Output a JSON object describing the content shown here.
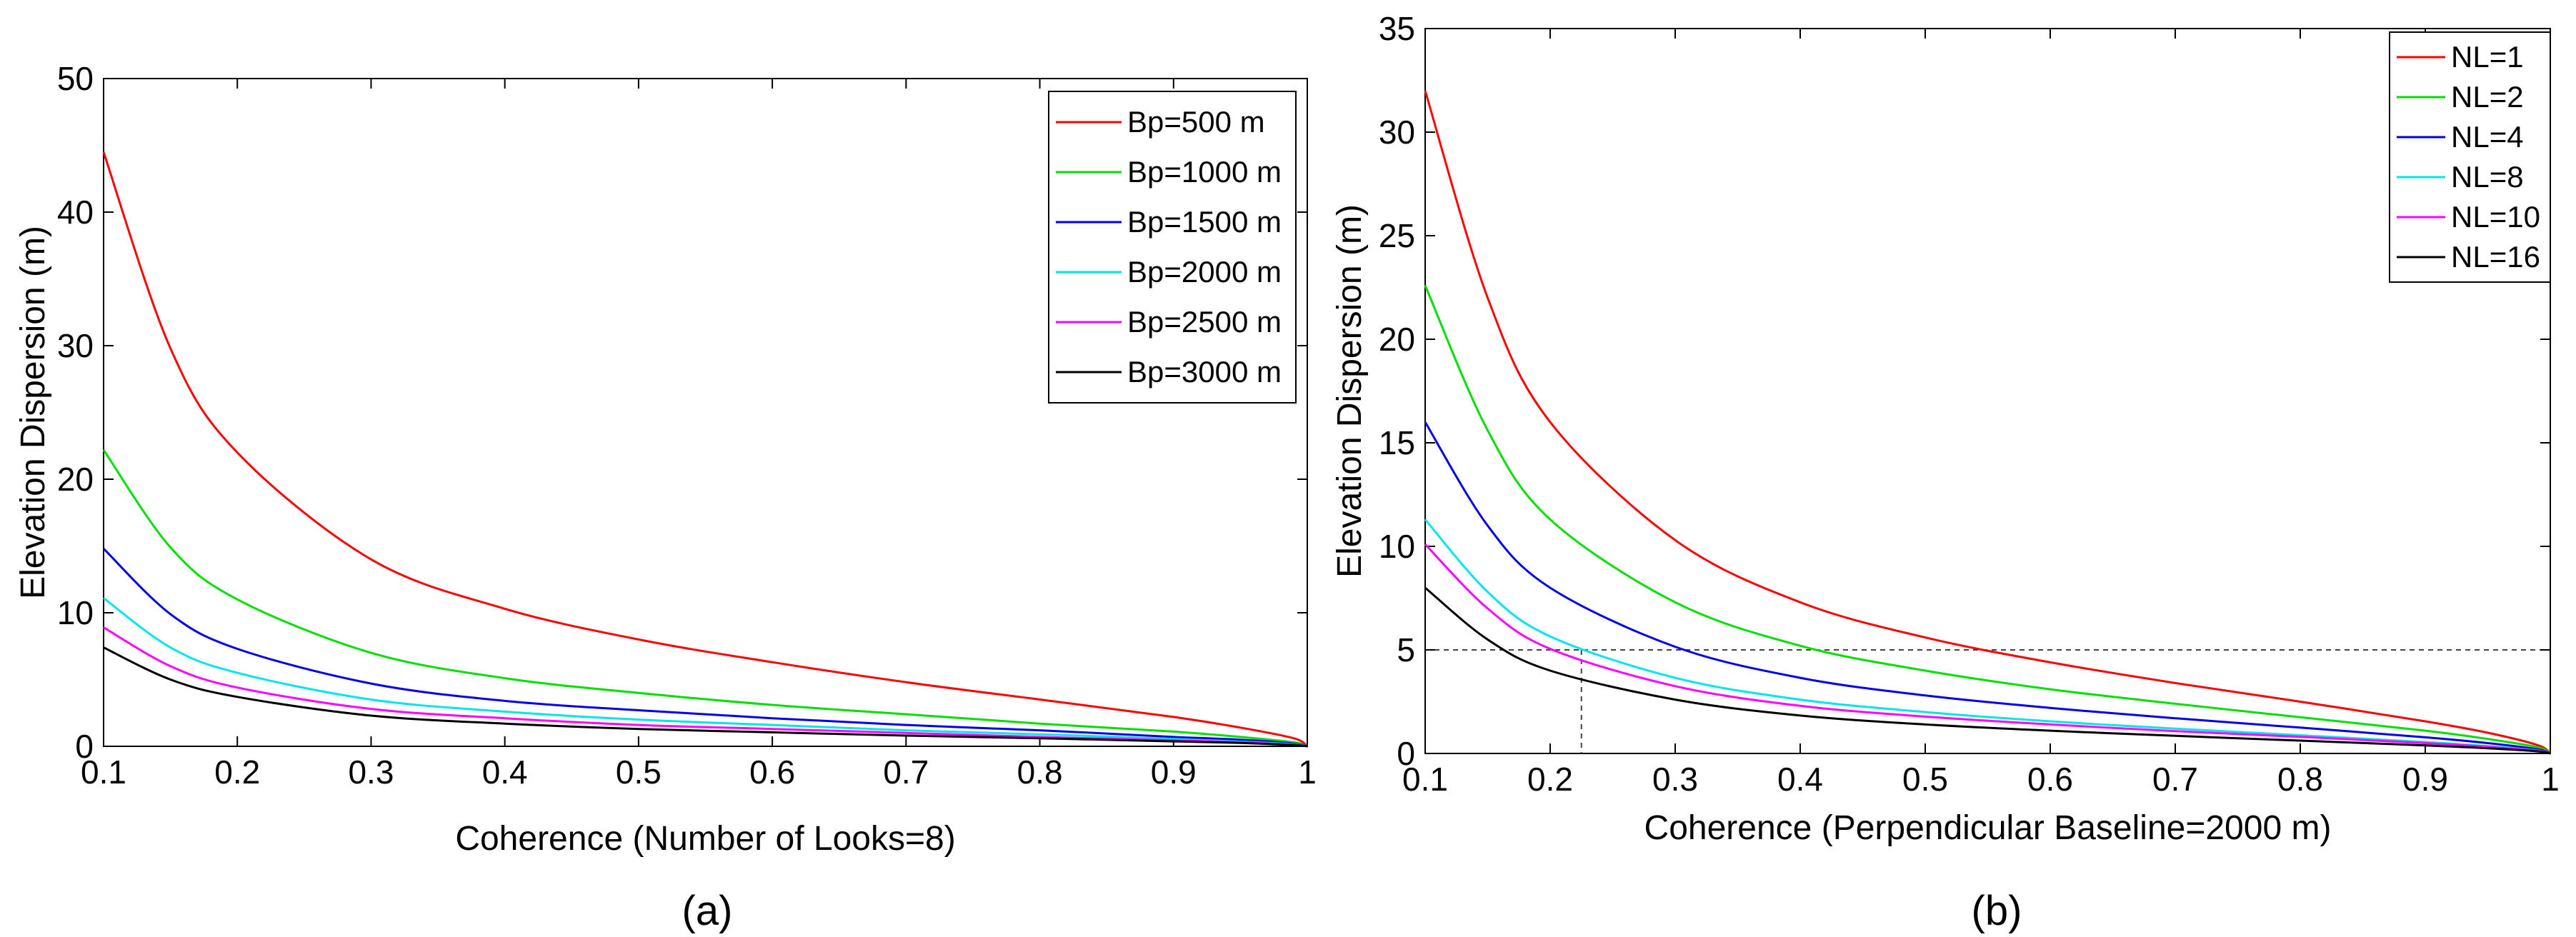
{
  "chart_data": [
    {
      "type": "line",
      "caption": "(a)",
      "xlabel": "Coherence (Number of Looks=8)",
      "ylabel": "Elevation Dispersion (m)",
      "xlim": [
        0.1,
        1
      ],
      "ylim": [
        0,
        50
      ],
      "xticks": [
        0.1,
        0.2,
        0.3,
        0.4,
        0.5,
        0.6,
        0.7,
        0.8,
        0.9,
        1
      ],
      "xtick_labels": [
        "0.1",
        "0.2",
        "0.3",
        "0.4",
        "0.5",
        "0.6",
        "0.7",
        "0.8",
        "0.9",
        "1"
      ],
      "yticks": [
        0,
        10,
        20,
        30,
        40,
        50
      ],
      "ytick_labels": [
        "0",
        "10",
        "20",
        "30",
        "40",
        "50"
      ],
      "grid": false,
      "legend_position": "top-right",
      "x": [
        0.1,
        0.15,
        0.2,
        0.3,
        0.4,
        0.5,
        0.6,
        0.7,
        0.8,
        0.9,
        0.95,
        0.99,
        1.0
      ],
      "series": [
        {
          "name": "Bp=500 m",
          "color": "#ff0000",
          "values": [
            44.5,
            29.8,
            22.0,
            14.0,
            10.3,
            8.0,
            6.3,
            4.8,
            3.5,
            2.2,
            1.4,
            0.6,
            0.0
          ]
        },
        {
          "name": "Bp=1000 m",
          "color": "#00e000",
          "values": [
            22.2,
            14.9,
            11.0,
            7.0,
            5.1,
            4.0,
            3.1,
            2.4,
            1.7,
            1.1,
            0.7,
            0.3,
            0.0
          ]
        },
        {
          "name": "Bp=1500 m",
          "color": "#0000ee",
          "values": [
            14.8,
            9.9,
            7.3,
            4.7,
            3.4,
            2.7,
            2.1,
            1.6,
            1.2,
            0.7,
            0.5,
            0.2,
            0.0
          ]
        },
        {
          "name": "Bp=2000 m",
          "color": "#00e5ee",
          "values": [
            11.1,
            7.4,
            5.5,
            3.5,
            2.6,
            2.0,
            1.6,
            1.2,
            0.9,
            0.55,
            0.35,
            0.15,
            0.0
          ]
        },
        {
          "name": "Bp=2500 m",
          "color": "#ff00ff",
          "values": [
            8.9,
            6.0,
            4.4,
            2.8,
            2.1,
            1.6,
            1.3,
            1.0,
            0.7,
            0.45,
            0.3,
            0.1,
            0.0
          ]
        },
        {
          "name": "Bp=3000 m",
          "color": "#000000",
          "values": [
            7.4,
            5.0,
            3.7,
            2.3,
            1.7,
            1.3,
            1.05,
            0.8,
            0.6,
            0.37,
            0.25,
            0.1,
            0.0
          ]
        }
      ]
    },
    {
      "type": "line",
      "caption": "(b)",
      "xlabel": "Coherence (Perpendicular Baseline=2000 m)",
      "ylabel": "Elevation Dispersion (m)",
      "xlim": [
        0.1,
        1
      ],
      "ylim": [
        0,
        35
      ],
      "xticks": [
        0.1,
        0.2,
        0.3,
        0.4,
        0.5,
        0.6,
        0.7,
        0.8,
        0.9,
        1
      ],
      "xtick_labels": [
        "0.1",
        "0.2",
        "0.3",
        "0.4",
        "0.5",
        "0.6",
        "0.7",
        "0.8",
        "0.9",
        "1"
      ],
      "yticks": [
        0,
        5,
        10,
        15,
        20,
        25,
        30,
        35
      ],
      "ytick_labels": [
        "0",
        "5",
        "10",
        "15",
        "20",
        "25",
        "30",
        "35"
      ],
      "grid": false,
      "legend_position": "top-right",
      "reference_lines": {
        "y": 5,
        "x": 0.225
      },
      "x": [
        0.1,
        0.15,
        0.2,
        0.3,
        0.4,
        0.5,
        0.6,
        0.7,
        0.8,
        0.9,
        0.95,
        0.99,
        1.0
      ],
      "series": [
        {
          "name": "NL=1",
          "color": "#ff0000",
          "values": [
            32.0,
            22.0,
            16.0,
            10.3,
            7.3,
            5.6,
            4.4,
            3.4,
            2.5,
            1.55,
            1.0,
            0.4,
            0.0
          ]
        },
        {
          "name": "NL=2",
          "color": "#00e000",
          "values": [
            22.6,
            15.6,
            11.3,
            7.3,
            5.2,
            4.0,
            3.1,
            2.4,
            1.75,
            1.1,
            0.7,
            0.3,
            0.0
          ]
        },
        {
          "name": "NL=4",
          "color": "#0000ee",
          "values": [
            16.0,
            11.0,
            8.0,
            5.15,
            3.65,
            2.8,
            2.2,
            1.7,
            1.25,
            0.78,
            0.5,
            0.2,
            0.0
          ]
        },
        {
          "name": "NL=8",
          "color": "#00e5ee",
          "values": [
            11.3,
            7.8,
            5.65,
            3.65,
            2.6,
            2.0,
            1.55,
            1.2,
            0.88,
            0.55,
            0.35,
            0.14,
            0.0
          ]
        },
        {
          "name": "NL=10",
          "color": "#ff00ff",
          "values": [
            10.1,
            7.0,
            5.05,
            3.25,
            2.3,
            1.78,
            1.4,
            1.08,
            0.8,
            0.5,
            0.32,
            0.13,
            0.0
          ]
        },
        {
          "name": "NL=16",
          "color": "#000000",
          "values": [
            8.0,
            5.5,
            4.0,
            2.6,
            1.83,
            1.4,
            1.1,
            0.85,
            0.62,
            0.39,
            0.25,
            0.1,
            0.0
          ]
        }
      ]
    }
  ]
}
